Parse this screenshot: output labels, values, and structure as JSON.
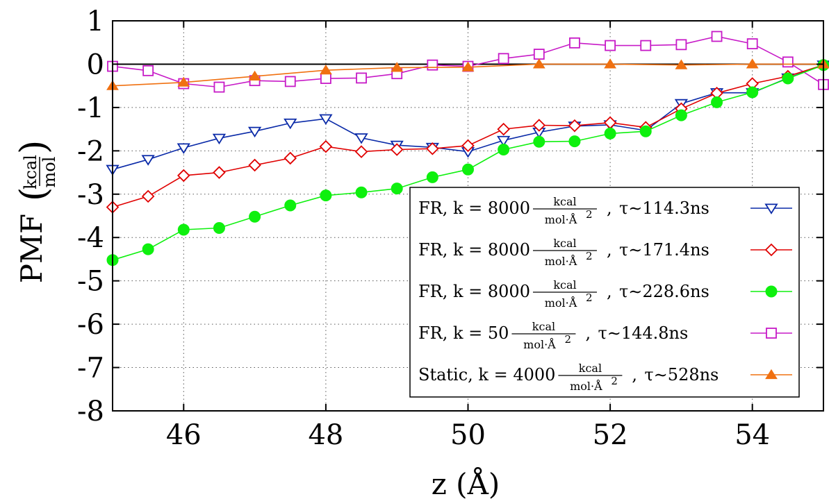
{
  "chart_data": {
    "type": "line",
    "xlabel": "z (Å)",
    "ylabel": "PMF",
    "ylabel_unit_num": "kcal",
    "ylabel_unit_den": "mol",
    "xlim": [
      45,
      55
    ],
    "ylim": [
      -8,
      1
    ],
    "xticks": [
      46,
      48,
      50,
      52,
      54
    ],
    "yticks": [
      1,
      0,
      -1,
      -2,
      -3,
      -4,
      -5,
      -6,
      -7,
      -8
    ],
    "grid": true,
    "zero_line": 0,
    "legend_position": "bottom-right",
    "legend_unit_num": "kcal",
    "legend_unit_den": "mol·Å",
    "legend_unit_exp": "2",
    "legend_sep": ",",
    "series": [
      {
        "prefix": "FR, k = 8000",
        "tau": "τ∼114.3ns",
        "color": "#0a2aa8",
        "marker": "triangle-down-open",
        "x": [
          45,
          45.5,
          46,
          46.5,
          47,
          47.5,
          48,
          48.5,
          49,
          49.5,
          50,
          50.5,
          51,
          51.5,
          52,
          52.5,
          53,
          53.5,
          54,
          54.5,
          55
        ],
        "y": [
          -2.43,
          -2.2,
          -1.93,
          -1.71,
          -1.55,
          -1.36,
          -1.26,
          -1.7,
          -1.87,
          -1.92,
          -2.02,
          -1.76,
          -1.57,
          -1.43,
          -1.4,
          -1.53,
          -0.91,
          -0.66,
          -0.66,
          -0.32,
          -0.02
        ]
      },
      {
        "prefix": "FR, k = 8000",
        "tau": "τ∼171.4ns",
        "color": "#e00000",
        "marker": "diamond-open",
        "x": [
          45,
          45.5,
          46,
          46.5,
          47,
          47.5,
          48,
          48.5,
          49,
          49.5,
          50,
          50.5,
          51,
          51.5,
          52,
          52.5,
          53,
          53.5,
          54,
          54.5,
          55
        ],
        "y": [
          -3.3,
          -3.05,
          -2.57,
          -2.5,
          -2.33,
          -2.17,
          -1.9,
          -2.02,
          -1.97,
          -1.95,
          -1.88,
          -1.5,
          -1.41,
          -1.42,
          -1.35,
          -1.46,
          -1.03,
          -0.67,
          -0.45,
          -0.28,
          -0.02
        ]
      },
      {
        "prefix": "FR, k = 8000",
        "tau": "τ∼228.6ns",
        "color": "#0ef00e",
        "marker": "circle-filled",
        "x": [
          45,
          45.5,
          46,
          46.5,
          47,
          47.5,
          48,
          48.5,
          49,
          49.5,
          50,
          50.5,
          51,
          51.5,
          52,
          52.5,
          53,
          53.5,
          54,
          54.5,
          55
        ],
        "y": [
          -4.52,
          -4.27,
          -3.82,
          -3.78,
          -3.52,
          -3.26,
          -3.03,
          -2.96,
          -2.87,
          -2.61,
          -2.43,
          -1.97,
          -1.79,
          -1.78,
          -1.6,
          -1.55,
          -1.18,
          -0.88,
          -0.65,
          -0.33,
          -0.02
        ]
      },
      {
        "prefix": "FR, k = 50",
        "tau": "τ∼144.8ns",
        "color": "#c71ac7",
        "marker": "square-open",
        "x": [
          45,
          45.5,
          46,
          46.5,
          47,
          47.5,
          48,
          48.5,
          49,
          49.5,
          50,
          50.5,
          51,
          51.5,
          52,
          52.5,
          53,
          53.5,
          54,
          54.5,
          55
        ],
        "y": [
          -0.05,
          -0.15,
          -0.45,
          -0.53,
          -0.38,
          -0.4,
          -0.33,
          -0.32,
          -0.22,
          -0.02,
          -0.05,
          0.13,
          0.23,
          0.49,
          0.43,
          0.43,
          0.45,
          0.64,
          0.47,
          0.05,
          -0.47
        ]
      },
      {
        "prefix": "Static, k = 4000",
        "tau": "τ∼528ns",
        "color": "#f07010",
        "marker": "triangle-up-filled",
        "x": [
          45,
          46,
          47,
          48,
          49,
          50,
          51,
          52,
          53,
          54,
          55
        ],
        "y": [
          -0.5,
          -0.42,
          -0.28,
          -0.14,
          -0.08,
          -0.07,
          0.0,
          0.0,
          -0.02,
          0.0,
          0.0
        ]
      }
    ]
  }
}
